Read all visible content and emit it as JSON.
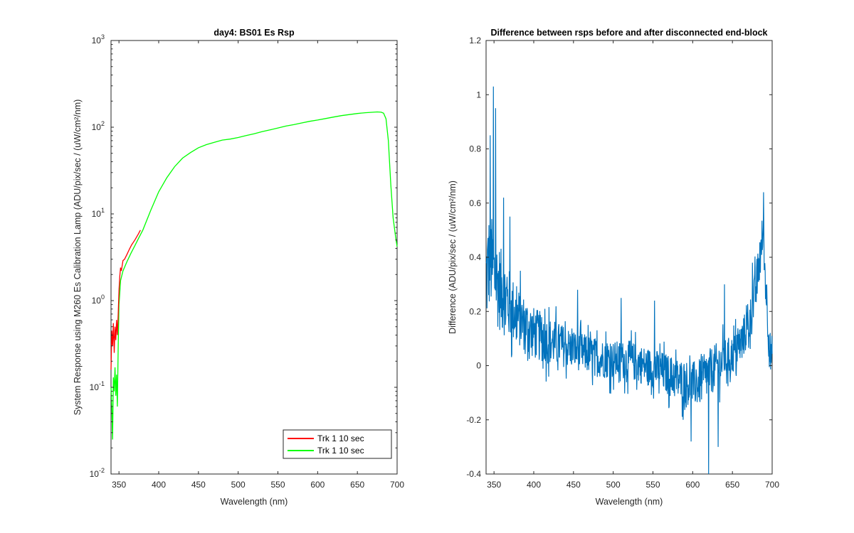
{
  "chart_data": [
    {
      "type": "line",
      "title": "day4: BS01 Es Rsp",
      "xlabel": "Wavelength (nm)",
      "ylabel": "System Response using M260 Es Calibration Lamp  (ADU/pix/sec / (uW/cm²/nm)",
      "yscale": "log",
      "xlim": [
        340,
        700
      ],
      "ylim": [
        0.01,
        1000
      ],
      "xticks": [
        "350",
        "400",
        "450",
        "500",
        "550",
        "600",
        "650",
        "700"
      ],
      "yticks": [
        {
          "value": 0.01,
          "base": "10",
          "exp": "-2"
        },
        {
          "value": 0.1,
          "base": "10",
          "exp": "-1"
        },
        {
          "value": 1,
          "base": "10",
          "exp": "0"
        },
        {
          "value": 10,
          "base": "10",
          "exp": "1"
        },
        {
          "value": 100,
          "base": "10",
          "exp": "2"
        },
        {
          "value": 1000,
          "base": "10",
          "exp": "3"
        }
      ],
      "grid": false,
      "legend_position": "bottom-right",
      "series": [
        {
          "name": "Trk 1  10 sec",
          "color": "#ff0000",
          "x": [
            340,
            341,
            342,
            343,
            344,
            345,
            346,
            347,
            348,
            349,
            350,
            351,
            352,
            353,
            355,
            357,
            360,
            363,
            366,
            370,
            374,
            377
          ],
          "y": [
            0.16,
            0.45,
            0.3,
            0.55,
            0.25,
            0.5,
            0.35,
            0.6,
            0.4,
            0.7,
            1.3,
            1.9,
            2.4,
            2.2,
            2.9,
            3.0,
            3.4,
            3.9,
            4.4,
            5.0,
            5.8,
            6.5
          ]
        },
        {
          "name": "Trk 1  10 sec",
          "color": "#00ff00",
          "x": [
            340,
            341,
            342,
            343,
            344,
            345,
            346,
            347,
            348,
            349,
            350,
            352,
            355,
            360,
            365,
            370,
            375,
            380,
            390,
            400,
            410,
            420,
            430,
            440,
            450,
            460,
            470,
            480,
            490,
            500,
            510,
            520,
            530,
            540,
            550,
            560,
            570,
            580,
            590,
            600,
            610,
            620,
            630,
            640,
            650,
            660,
            670,
            675,
            680,
            683,
            686,
            689,
            692,
            695,
            698,
            700
          ],
          "y": [
            0.1,
            0.06,
            0.025,
            0.13,
            0.09,
            0.17,
            0.08,
            0.14,
            0.06,
            0.3,
            0.9,
            1.7,
            2.2,
            2.8,
            3.5,
            4.3,
            5.3,
            6.5,
            11,
            18,
            26,
            35,
            44,
            51,
            58,
            63,
            67,
            71,
            73,
            76,
            80,
            84,
            89,
            93,
            98,
            103,
            107,
            112,
            117,
            121,
            126,
            131,
            136,
            140,
            144,
            147,
            149,
            150,
            149,
            145,
            125,
            70,
            22,
            9,
            5.5,
            4.2
          ]
        }
      ]
    },
    {
      "type": "line",
      "title": "Difference between rsps before and after disconnected end-block",
      "xlabel": "Wavelength (nm)",
      "ylabel": "Difference (ADU/pix/sec / (uW/cm²/nm)",
      "xlim": [
        340,
        700
      ],
      "ylim": [
        -0.4,
        1.2
      ],
      "xticks": [
        "350",
        "400",
        "450",
        "500",
        "550",
        "600",
        "650",
        "700"
      ],
      "yticks": [
        "-0.4",
        "-0.2",
        "0",
        "0.2",
        "0.4",
        "0.6",
        "0.8",
        "1",
        "1.2"
      ],
      "grid": false,
      "series": [
        {
          "color": "#0072bd",
          "trend_x": [
            340,
            345,
            350,
            355,
            360,
            370,
            380,
            390,
            400,
            420,
            440,
            460,
            480,
            500,
            520,
            540,
            560,
            580,
            600,
            610,
            620,
            630,
            640,
            650,
            660,
            670,
            675,
            680,
            685,
            688,
            691,
            694,
            697,
            700
          ],
          "trend_y": [
            0.32,
            0.4,
            0.33,
            0.3,
            0.27,
            0.22,
            0.18,
            0.15,
            0.12,
            0.09,
            0.07,
            0.05,
            0.03,
            0.02,
            0.02,
            0.0,
            -0.02,
            -0.05,
            -0.07,
            -0.06,
            -0.03,
            0.0,
            0.02,
            0.04,
            0.08,
            0.15,
            0.2,
            0.3,
            0.4,
            0.48,
            0.35,
            0.2,
            0.05,
            0.02
          ],
          "noise_amplitude": [
            [
              340,
              0.22
            ],
            [
              380,
              0.12
            ],
            [
              450,
              0.08
            ],
            [
              550,
              0.08
            ],
            [
              620,
              0.1
            ],
            [
              650,
              0.08
            ],
            [
              700,
              0.1
            ]
          ],
          "peaks": [
            {
              "x": 349,
              "y": 1.03
            },
            {
              "x": 345,
              "y": 0.85
            },
            {
              "x": 352,
              "y": 0.95
            },
            {
              "x": 362,
              "y": 0.62
            },
            {
              "x": 370,
              "y": 0.55
            },
            {
              "x": 455,
              "y": 0.28
            },
            {
              "x": 510,
              "y": 0.25
            },
            {
              "x": 552,
              "y": 0.24
            },
            {
              "x": 588,
              "y": -0.2
            },
            {
              "x": 598,
              "y": -0.28
            },
            {
              "x": 620,
              "y": -0.4
            },
            {
              "x": 632,
              "y": -0.3
            },
            {
              "x": 640,
              "y": 0.3
            },
            {
              "x": 675,
              "y": 0.38
            },
            {
              "x": 689,
              "y": 0.64
            }
          ]
        }
      ]
    }
  ]
}
